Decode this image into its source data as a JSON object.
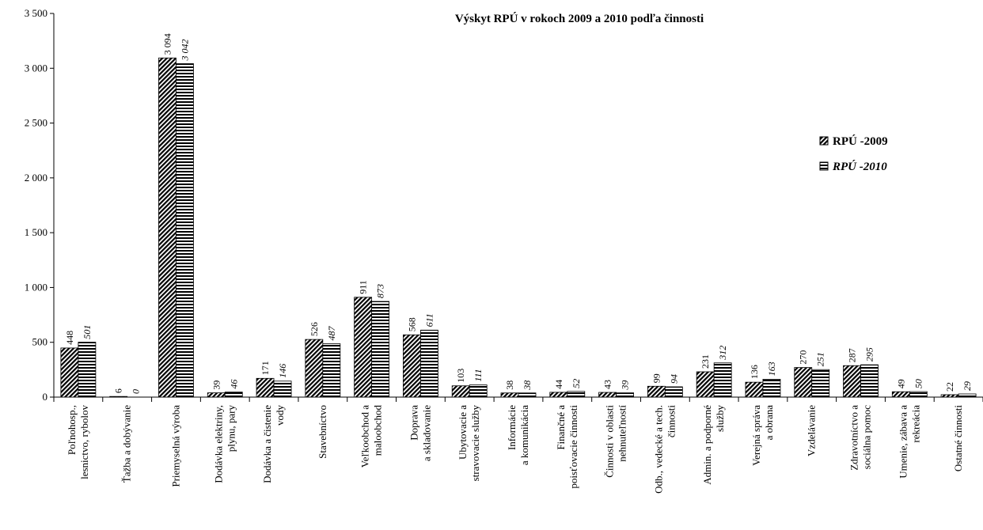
{
  "chart_data": {
    "type": "bar",
    "title": "Výskyt RPÚ v rokoch 2009 a 2010 podľa činnosti",
    "categories": [
      "Poľnohosp.,\nlesnictvo, rybolov",
      "Ťažba a dobývanie",
      "Priemyselná výroba",
      "Dodávka elektriny,\nplynu, pary",
      "Dodávka a čistenie\nvody",
      "Stavebníctvo",
      "Veľkoobchod a\nmaloobchod",
      "Doprava\na skladovanie",
      "Ubytovacie a\nstravovacie služby",
      "Informácie\na komunikácia",
      "Finančné a\npoisťovacie činnosti",
      "Činnosti v oblasti\nnehnuteľností",
      "Odb., vedecké a tech.\nčinnosti",
      "Admin. a podporné\nslužby",
      "Verejná správa\na obrana",
      "Vzdelávanie",
      "Zdravotníctvo a\nsociálna pomoc",
      "Umenie, zábava a\nrekreácia",
      "Ostatné činnosti"
    ],
    "series": [
      {
        "name": "RPÚ -2009",
        "color": "#000000",
        "hatch": "diagonal",
        "italic": false,
        "values": [
          448,
          6,
          3094,
          39,
          171,
          526,
          911,
          568,
          103,
          38,
          44,
          43,
          99,
          231,
          136,
          270,
          287,
          49,
          22
        ],
        "value_labels": [
          "448",
          "6",
          "3 094",
          "39",
          "171",
          "526",
          "911",
          "568",
          "103",
          "38",
          "44",
          "43",
          "99",
          "231",
          "136",
          "270",
          "287",
          "49",
          "22"
        ]
      },
      {
        "name": "RPÚ -2010",
        "color": "#000000",
        "hatch": "horizontal",
        "italic": true,
        "values": [
          501,
          0,
          3042,
          46,
          146,
          487,
          873,
          611,
          111,
          38,
          52,
          39,
          94,
          312,
          163,
          251,
          295,
          50,
          29
        ],
        "value_labels": [
          "501",
          "0",
          "3 042",
          "46",
          "146",
          "487",
          "873",
          "611",
          "111",
          "38",
          "52",
          "39",
          "94",
          "312",
          "163",
          "251",
          "295",
          "50",
          "29"
        ]
      }
    ],
    "ylim": [
      0,
      3500
    ],
    "yticks": [
      0,
      500,
      {
        "value": 1000,
        "label": "1 000"
      },
      {
        "value": 1500,
        "label": "1 500"
      },
      {
        "value": 2000,
        "label": "2 000"
      },
      {
        "value": 2500,
        "label": "2 500"
      },
      {
        "value": 3000,
        "label": "3 000"
      },
      {
        "value": 3500,
        "label": "3 500"
      }
    ],
    "grid": false,
    "legend": "right"
  }
}
